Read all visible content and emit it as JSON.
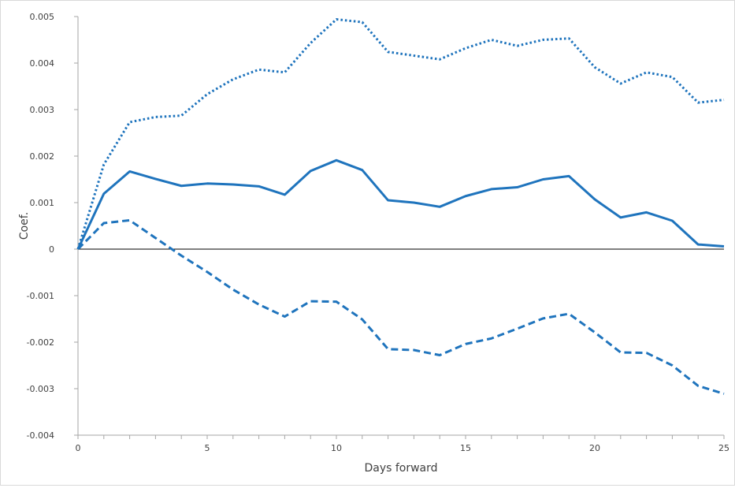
{
  "chart_data": {
    "type": "line",
    "title": "",
    "xlabel": "Days forward",
    "ylabel": "Coef.",
    "xlim": [
      0,
      25
    ],
    "ylim": [
      -0.004,
      0.005
    ],
    "x_ticks": [
      0,
      5,
      10,
      15,
      20,
      25
    ],
    "x_tick_labels": [
      "0",
      "5",
      "10",
      "15",
      "20",
      "25"
    ],
    "y_ticks": [
      0.005,
      0.004,
      0.003,
      0.002,
      0.001,
      0,
      -0.001,
      -0.002,
      -0.003,
      -0.004
    ],
    "y_tick_labels": [
      "0.005",
      "0.004",
      "0.003",
      "0.002",
      "0.001",
      "0",
      "-0.001",
      "-0.002",
      "-0.003",
      "-0.004"
    ],
    "grid": false,
    "legend": "none",
    "x": [
      0,
      1,
      2,
      3,
      4,
      5,
      6,
      7,
      8,
      9,
      10,
      11,
      12,
      13,
      14,
      15,
      16,
      17,
      18,
      19,
      20,
      21,
      22,
      23,
      24,
      25
    ],
    "series": [
      {
        "style": "dotted",
        "color": "#1f74bd",
        "values": [
          0,
          0.00182,
          0.00273,
          0.00284,
          0.00287,
          0.00333,
          0.00365,
          0.00386,
          0.0038,
          0.00443,
          0.00494,
          0.00488,
          0.00424,
          0.00416,
          0.00408,
          0.00432,
          0.0045,
          0.00437,
          0.0045,
          0.00453,
          0.00391,
          0.00356,
          0.0038,
          0.0037,
          0.00315,
          0.00321
        ]
      },
      {
        "style": "solid",
        "color": "#1f74bd",
        "values": [
          0,
          0.00119,
          0.00167,
          0.00151,
          0.00136,
          0.00141,
          0.00139,
          0.00135,
          0.00117,
          0.00168,
          0.00191,
          0.0017,
          0.00105,
          0.001,
          0.00091,
          0.00114,
          0.00129,
          0.00133,
          0.0015,
          0.00157,
          0.00107,
          0.00068,
          0.00079,
          0.00061,
          0.0001,
          6e-05
        ]
      },
      {
        "style": "dashed",
        "color": "#1f74bd",
        "values": [
          0,
          0.00056,
          0.00062,
          0.00024,
          -0.00014,
          -0.00049,
          -0.00087,
          -0.00119,
          -0.00145,
          -0.00112,
          -0.00113,
          -0.00151,
          -0.00215,
          -0.00217,
          -0.00228,
          -0.00204,
          -0.00192,
          -0.00171,
          -0.00149,
          -0.00139,
          -0.00179,
          -0.00222,
          -0.00223,
          -0.0025,
          -0.00294,
          -0.00311
        ]
      }
    ]
  }
}
